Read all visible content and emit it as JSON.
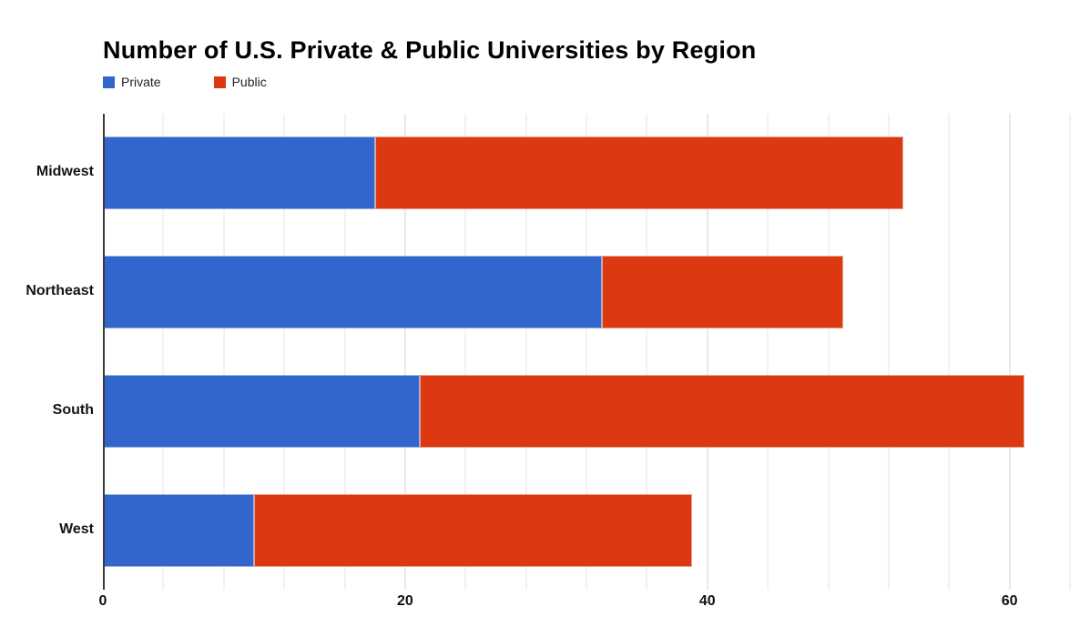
{
  "title": "Number of U.S. Private & Public Universities by Region",
  "legend": {
    "items": [
      {
        "label": "Private",
        "color": "#3366CC"
      },
      {
        "label": "Public",
        "color": "#DC3912"
      }
    ]
  },
  "chart_data": {
    "type": "bar",
    "orientation": "horizontal",
    "stacked": true,
    "title": "Number of U.S. Private & Public Universities by Region",
    "categories": [
      "Midwest",
      "Northeast",
      "South",
      "West"
    ],
    "series": [
      {
        "name": "Private",
        "color": "#3366CC",
        "border_color": "#9ab2e4",
        "values": [
          18,
          33,
          21,
          10
        ]
      },
      {
        "name": "Public",
        "color": "#DC3912",
        "border_color": "#e9a08a",
        "values": [
          35,
          16,
          40,
          29
        ]
      }
    ],
    "totals": [
      53,
      49,
      61,
      39
    ],
    "xlabel": "",
    "ylabel": "",
    "x_axis": {
      "tick_values": [
        0,
        20,
        40,
        60
      ],
      "tick_labels": [
        "0",
        "20",
        "40",
        "60"
      ],
      "max": 64.6,
      "minor_gridline_step": 4
    },
    "grid": true,
    "legend_position": "top-left",
    "background_color": "#ffffff"
  }
}
